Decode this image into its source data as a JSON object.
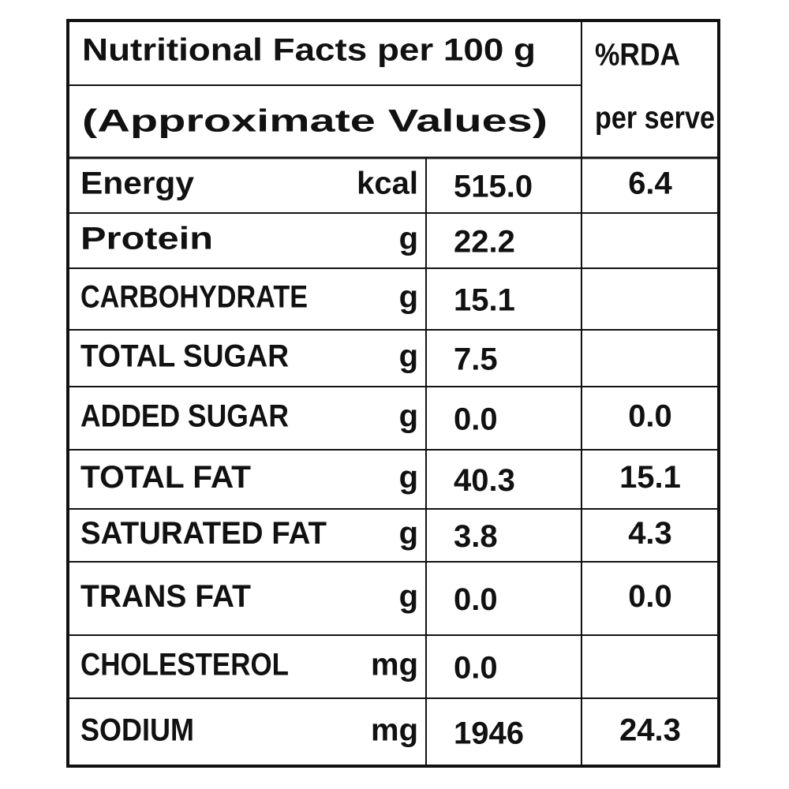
{
  "header": {
    "title": "Nutritional Facts per 100 g",
    "subtitle": "(Approximate Values)",
    "rda_title": "%RDA",
    "rda_subtitle": "per serve"
  },
  "rows": [
    {
      "nutrient": "Energy",
      "unit": "kcal",
      "value": "515.0",
      "rda": "6.4"
    },
    {
      "nutrient": "Protein",
      "unit": "g",
      "value": "22.2"
    },
    {
      "nutrient": "CARBOHYDRATE",
      "unit": "g",
      "value": "15.1"
    },
    {
      "nutrient": "TOTAL SUGAR",
      "unit": "g",
      "value": "7.5"
    },
    {
      "nutrient": "ADDED SUGAR",
      "unit": "g",
      "value": "0.0",
      "rda": "0.0"
    },
    {
      "nutrient": "TOTAL FAT",
      "unit": "g",
      "value": "40.3",
      "rda": "15.1"
    },
    {
      "nutrient": "SATURATED FAT",
      "unit": "g",
      "value": "3.8",
      "rda": "4.3"
    },
    {
      "nutrient": "TRANS FAT",
      "unit": "g",
      "value": "0.0",
      "rda": "0.0"
    },
    {
      "nutrient": "CHOLESTEROL",
      "unit": "mg",
      "value": "0.0"
    },
    {
      "nutrient": "SODIUM",
      "unit": "mg",
      "value": "1946",
      "rda": "24.3"
    }
  ]
}
